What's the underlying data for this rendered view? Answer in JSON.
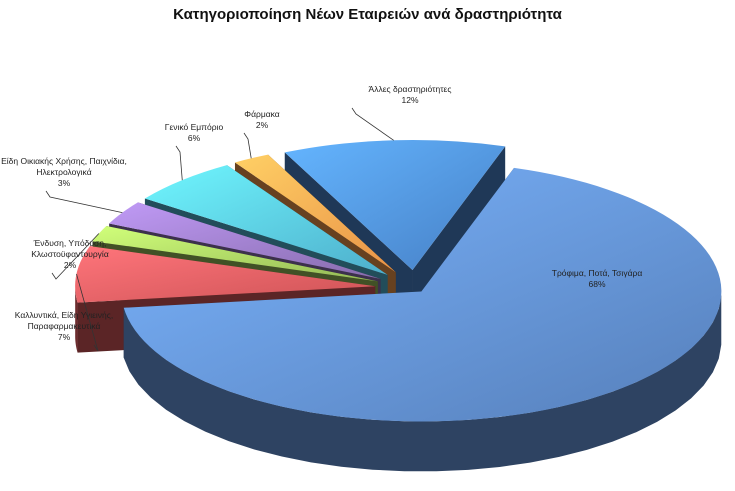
{
  "chart_data": {
    "type": "pie",
    "title": "Κατηγοριοποίηση Νέων Εταιρειών ανά δραστηριότητα",
    "slices": [
      {
        "label": "Τρόφιμα, Ποτά, Τσιγάρα",
        "value": 68,
        "value_label": "68%",
        "color": "#5b86c4"
      },
      {
        "label": "Καλλυντικά, Είδη Υγιεινής, Παραφαρμακευτικά",
        "value": 7,
        "value_label": "7%",
        "color": "#d9575b"
      },
      {
        "label": "Ένδυση, Υπόδυση, Κλωστοϋφαντουργία",
        "value": 2,
        "value_label": "2%",
        "color": "#9bc25a"
      },
      {
        "label": "Είδη Οικιακής Χρήσης, Παιχνίδια, Ηλεκτρολογικά",
        "value": 3,
        "value_label": "3%",
        "color": "#8e72b6"
      },
      {
        "label": "Γενικό Εμπόριο",
        "value": 6,
        "value_label": "6%",
        "color": "#52b7d6"
      },
      {
        "label": "Φάρμακα",
        "value": 2,
        "value_label": "2%",
        "color": "#f59a4b"
      },
      {
        "label": "Άλλες δραστηριότητες",
        "value": 12,
        "value_label": "12%",
        "color": "#4a86cf"
      }
    ],
    "legend": "none",
    "style": "3d-exploded"
  }
}
